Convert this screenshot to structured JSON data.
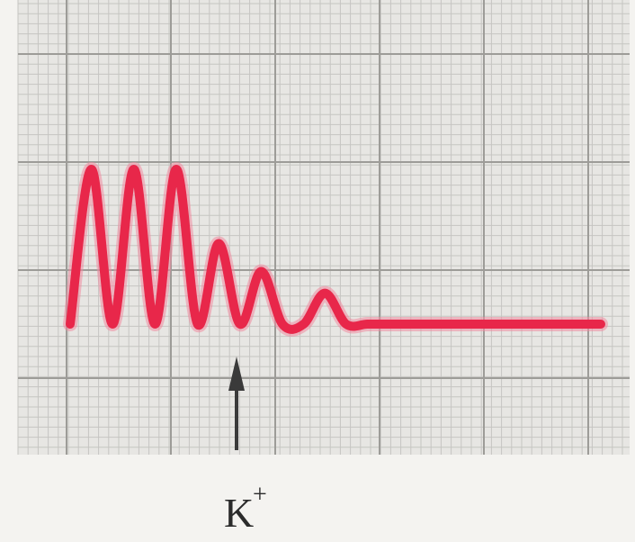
{
  "chart_data": {
    "type": "line",
    "title": "",
    "xlabel": "",
    "ylabel": "",
    "grid": true,
    "legend": "none",
    "ylim": [
      0,
      1.2
    ],
    "series": [
      {
        "color": "#e8274a",
        "x": [
          0,
          4,
          8,
          12,
          16,
          20,
          24,
          28,
          32,
          36,
          40,
          44,
          48,
          52,
          56,
          60,
          64,
          68,
          72,
          76,
          80,
          84,
          88,
          92,
          96,
          100
        ],
        "y": [
          0.0,
          1.0,
          0.0,
          1.0,
          0.0,
          1.0,
          0.0,
          0.52,
          0.0,
          0.34,
          0.0,
          0.0,
          0.2,
          0.0,
          0.0,
          0.0,
          0.0,
          0.0,
          0.0,
          0.0,
          0.0,
          0.0,
          0.0,
          0.0,
          0.0,
          0.0
        ]
      }
    ],
    "marker": {
      "at_x": 30,
      "label": "K",
      "label_superscript": "+"
    }
  }
}
